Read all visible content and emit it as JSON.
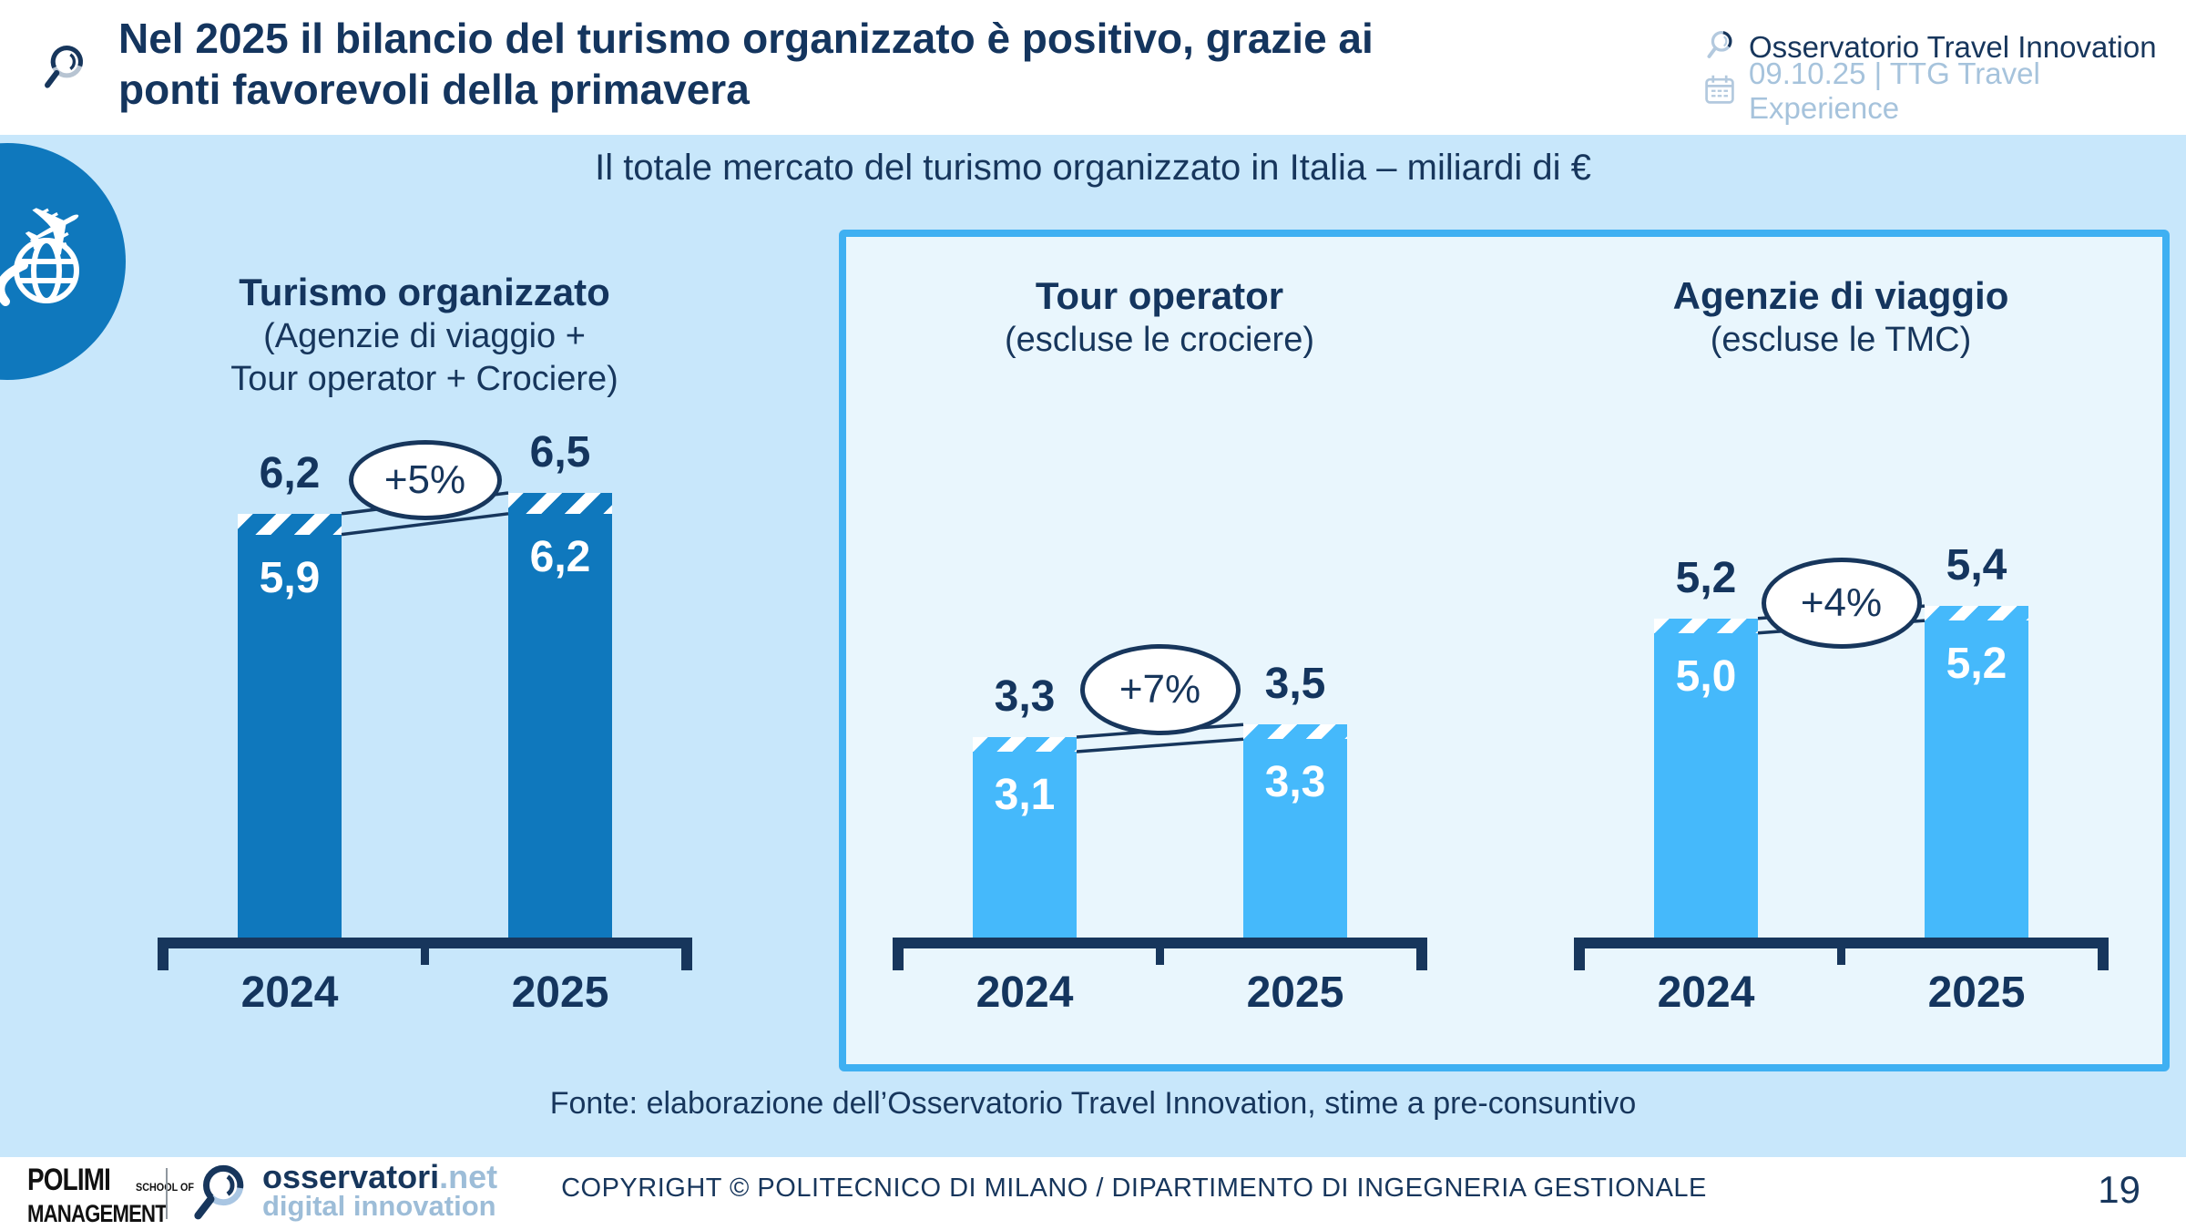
{
  "header": {
    "title_lines": [
      "Nel 2025 il bilancio del turismo organizzato è positivo, grazie ai",
      "ponti favorevoli della primavera"
    ],
    "brand": "Osservatorio Travel Innovation",
    "event_date": "09.10.25 | TTG Travel Experience"
  },
  "band": {
    "subtitle": "Il totale mercato del turismo organizzato in Italia – miliardi di €",
    "fonte": "Fonte: elaborazione dell’Osservatorio Travel Innovation, stime a pre-consuntivo"
  },
  "chart_data": [
    {
      "type": "bar",
      "title": "Turismo organizzato",
      "subtitle_lines": [
        "(Agenzie di viaggio +",
        "Tour operator + Crociere)"
      ],
      "categories": [
        "2024",
        "2025"
      ],
      "solid_values": [
        5.9,
        6.2
      ],
      "total_values": [
        6.2,
        6.5
      ],
      "solid_labels": [
        "5,9",
        "6,2"
      ],
      "total_labels": [
        "6,2",
        "6,5"
      ],
      "growth_label": "+5%",
      "unit": "miliardi di €",
      "ylim": [
        0,
        7
      ]
    },
    {
      "type": "bar",
      "title": "Tour operator",
      "subtitle_lines": [
        "(escluse le crociere)"
      ],
      "categories": [
        "2024",
        "2025"
      ],
      "solid_values": [
        3.1,
        3.3
      ],
      "total_values": [
        3.3,
        3.5
      ],
      "solid_labels": [
        "3,1",
        "3,3"
      ],
      "total_labels": [
        "3,3",
        "3,5"
      ],
      "growth_label": "+7%",
      "unit": "miliardi di €",
      "ylim": [
        0,
        7
      ]
    },
    {
      "type": "bar",
      "title": "Agenzie di viaggio",
      "subtitle_lines": [
        "(escluse le TMC)"
      ],
      "categories": [
        "2024",
        "2025"
      ],
      "solid_values": [
        5.0,
        5.2
      ],
      "total_values": [
        5.2,
        5.4
      ],
      "solid_labels": [
        "5,0",
        "5,2"
      ],
      "total_labels": [
        "5,2",
        "5,4"
      ],
      "growth_label": "+4%",
      "unit": "miliardi di €",
      "ylim": [
        0,
        7
      ]
    }
  ],
  "footer": {
    "polimi_line1": "POLIMI",
    "polimi_line1_small": "SCHOOL OF",
    "polimi_line2": "MANAGEMENT",
    "osservatori_name": "osservatori",
    "osservatori_tld": ".net",
    "osservatori_tagline": "digital innovation",
    "copyright": "COPYRIGHT © POLITECNICO DI MILANO / DIPARTIMENTO DI INGEGNERIA GESTIONALE",
    "page_number": "19"
  },
  "colors": {
    "navy": "#17365c",
    "title_navy": "#14355e",
    "dark_bar_blue": "#0f78bd",
    "light_bar_blue": "#45b9fb",
    "band_bg": "#c8e7fb",
    "box_bg": "#e9f6fd",
    "box_border": "#3fb0f2",
    "pale_text": "#a6c3dc",
    "footer_light_blue": "#9dbdd8",
    "badge_blue": "#0f78bd"
  }
}
